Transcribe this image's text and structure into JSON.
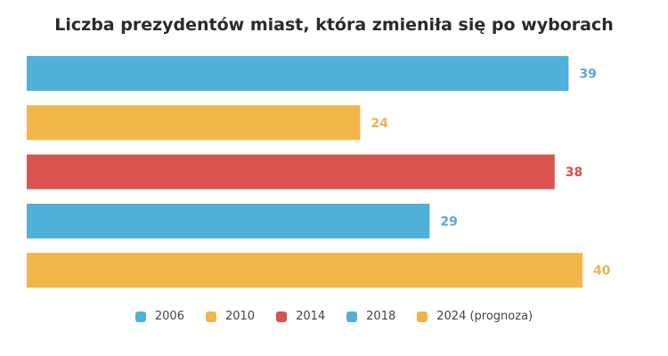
{
  "chart_data": {
    "type": "bar",
    "orientation": "horizontal",
    "title": "Liczba prezydentów miast, która zmieniła się po wyborach",
    "categories": [
      "2006",
      "2010",
      "2014",
      "2018",
      "2024 (prognoza)"
    ],
    "values": [
      39,
      24,
      38,
      29,
      40
    ],
    "data_labels": [
      "39",
      "24",
      "38",
      "29",
      "40"
    ],
    "colors": [
      "#4FB0D8",
      "#F2B54A",
      "#D9534F",
      "#4FB0D8",
      "#F2B54A"
    ],
    "label_colors": [
      "#5BA8D0",
      "#EDB24E",
      "#D24F4F",
      "#5BA8D0",
      "#EDB24E"
    ],
    "xlabel": "",
    "ylabel": "",
    "xlim": [
      0,
      40
    ],
    "grid": false,
    "axes_visible": false,
    "legend": {
      "position": "bottom",
      "entries": [
        {
          "label": "2006",
          "color": "#4FB0D8"
        },
        {
          "label": "2010",
          "color": "#F2B54A"
        },
        {
          "label": "2014",
          "color": "#D9534F"
        },
        {
          "label": "2018",
          "color": "#4FB0D8"
        },
        {
          "label": "2024 (prognoza)",
          "color": "#F2B54A"
        }
      ]
    }
  }
}
